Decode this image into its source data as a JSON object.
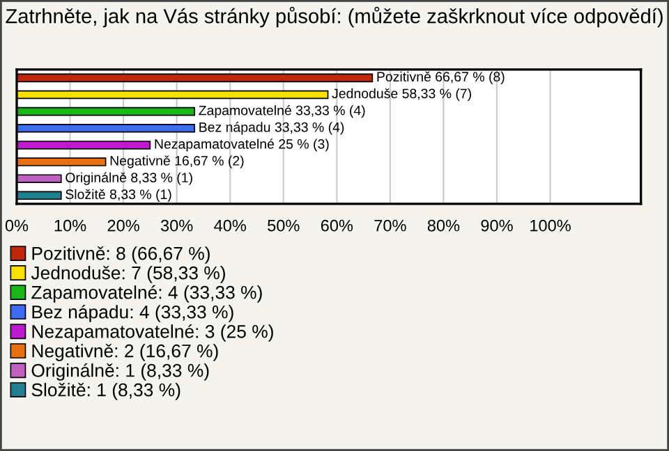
{
  "chart_data": {
    "type": "bar",
    "orientation": "horizontal",
    "title": "Zatrhněte, jak na Vás stránky působí: (můžete zaškrknout více odpovědí)",
    "categories": [
      null,
      null,
      null,
      null,
      null,
      null,
      null,
      null
    ],
    "series": [
      {
        "name": "Pozitivně: 8 (66,67 %)",
        "color": "#c0280c",
        "values": [
          66.67,
          null,
          null,
          null,
          null,
          null,
          null,
          null
        ],
        "value_labels": [
          "Pozitivně 66,67 % (8)",
          null,
          null,
          null,
          null,
          null,
          null,
          null
        ]
      },
      {
        "name": "Jednoduše: 7 (58,33 %)",
        "color": "#f8e000",
        "values": [
          null,
          58.33,
          null,
          null,
          null,
          null,
          null,
          null
        ],
        "value_labels": [
          null,
          "Jednoduše 58,33 % (7)",
          null,
          null,
          null,
          null,
          null,
          null
        ]
      },
      {
        "name": "Zapamovatelné: 4 (33,33 %)",
        "color": "#18b818",
        "values": [
          null,
          null,
          33.33,
          null,
          null,
          null,
          null,
          null
        ],
        "value_labels": [
          null,
          null,
          "Zapamovatelné 33,33 % (4)",
          null,
          null,
          null,
          null,
          null
        ]
      },
      {
        "name": "Bez nápadu: 4 (33,33 %)",
        "color": "#3c6cf0",
        "values": [
          null,
          null,
          null,
          33.33,
          null,
          null,
          null,
          null
        ],
        "value_labels": [
          null,
          null,
          null,
          "Bez nápadu 33,33 % (4)",
          null,
          null,
          null,
          null
        ]
      },
      {
        "name": "Nezapamatovatelné: 3 (25 %)",
        "color": "#c018d0",
        "values": [
          null,
          null,
          null,
          null,
          25,
          null,
          null,
          null
        ],
        "value_labels": [
          null,
          null,
          null,
          null,
          "Nezapamatovatelné 25 % (3)",
          null,
          null,
          null
        ]
      },
      {
        "name": "Negativně: 2 (16,67 %)",
        "color": "#e87010",
        "values": [
          null,
          null,
          null,
          null,
          null,
          16.67,
          null,
          null
        ],
        "value_labels": [
          null,
          null,
          null,
          null,
          null,
          "Negativně 16,67 % (2)",
          null,
          null
        ]
      },
      {
        "name": "Originálně: 1 (8,33 %)",
        "color": "#c060c0",
        "values": [
          null,
          null,
          null,
          null,
          null,
          null,
          8.33,
          null
        ],
        "value_labels": [
          null,
          null,
          null,
          null,
          null,
          null,
          "Originálně 8,33 % (1)",
          null
        ]
      },
      {
        "name": "Složitě: 1 (8,33 %)",
        "color": "#208090",
        "values": [
          null,
          null,
          null,
          null,
          null,
          null,
          null,
          8.33
        ],
        "value_labels": [
          null,
          null,
          null,
          null,
          null,
          null,
          null,
          "Složitě 8,33 % (1)"
        ]
      }
    ],
    "xlim": [
      0,
      117
    ],
    "xticks": [
      {
        "value": 0,
        "label": "0%"
      },
      {
        "value": 10,
        "label": "10%"
      },
      {
        "value": 20,
        "label": "20%"
      },
      {
        "value": 30,
        "label": "30%"
      },
      {
        "value": 40,
        "label": "40%"
      },
      {
        "value": 50,
        "label": "50%"
      },
      {
        "value": 60,
        "label": "60%"
      },
      {
        "value": 70,
        "label": "70%"
      },
      {
        "value": 80,
        "label": "80%"
      },
      {
        "value": 90,
        "label": "90%"
      },
      {
        "value": 100,
        "label": "100%"
      }
    ],
    "tick_labels": "x",
    "grid": "x",
    "legend": "bottom"
  }
}
